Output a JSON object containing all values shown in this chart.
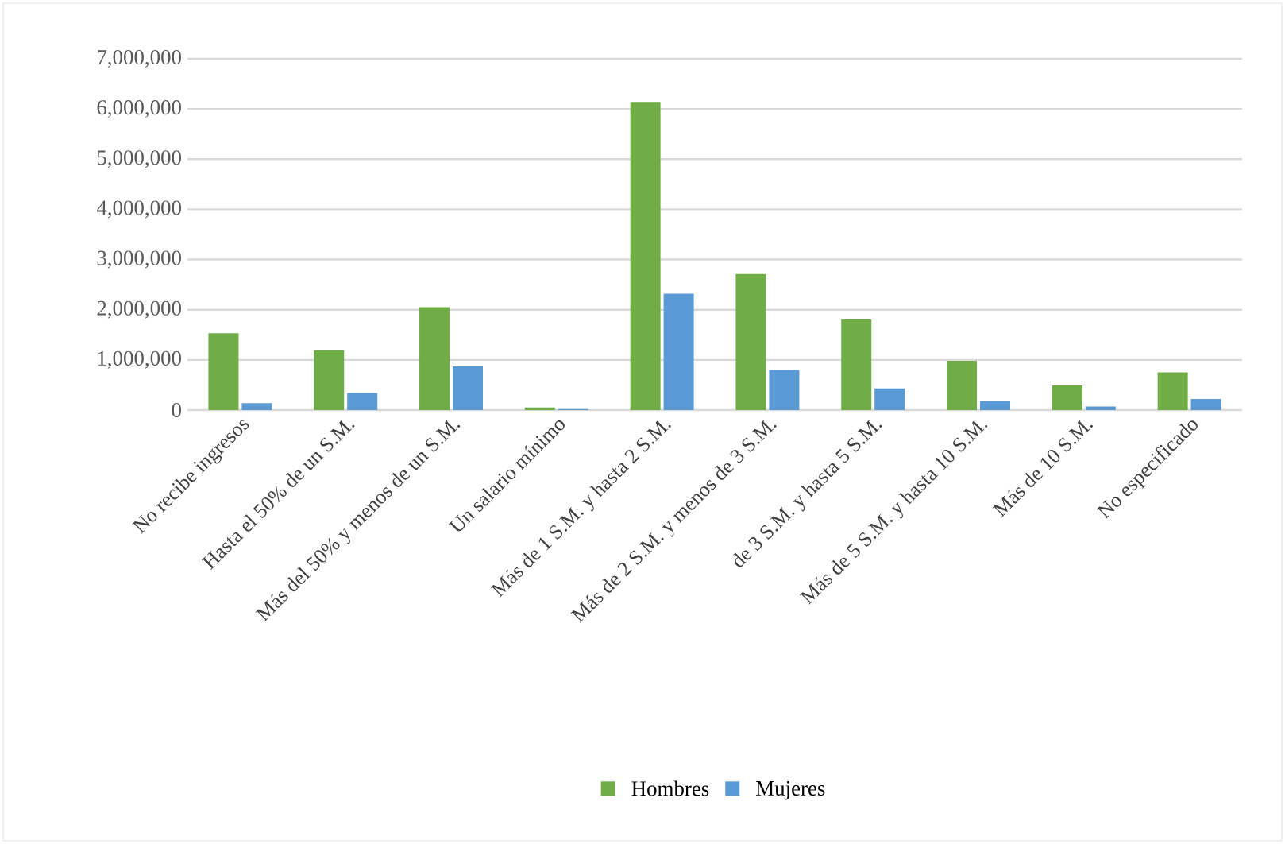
{
  "chart_data": {
    "type": "bar",
    "categories": [
      "No recibe ingresos",
      "Hasta el 50% de un S.M.",
      "Más del 50% y menos de un S.M.",
      "Un salario mínimo",
      "Más de 1 S.M. y hasta 2 S.M.",
      "Más de 2 S.M. y menos de 3 S.M.",
      "de 3 S.M. y hasta 5 S.M.",
      "Más de 5 S.M. y hasta 10 S.M.",
      "Más de 10 S.M.",
      "No especificado"
    ],
    "series": [
      {
        "name": "Hombres",
        "color": "#70ad47",
        "values": [
          1530000,
          1190000,
          2050000,
          50000,
          6140000,
          2710000,
          1810000,
          980000,
          490000,
          750000
        ]
      },
      {
        "name": "Mujeres",
        "color": "#5b9bd5",
        "values": [
          140000,
          340000,
          870000,
          20000,
          2320000,
          800000,
          430000,
          180000,
          70000,
          220000
        ]
      }
    ],
    "ylim": [
      0,
      7000000
    ],
    "yticks": [
      0,
      {
        "value": 1000000,
        "label": "1,000,000"
      },
      {
        "value": 2000000,
        "label": "2,000,000"
      },
      {
        "value": 3000000,
        "label": "3,000,000"
      },
      {
        "value": 4000000,
        "label": "4,000,000"
      },
      {
        "value": 5000000,
        "label": "5,000,000"
      },
      {
        "value": 6000000,
        "label": "6,000,000"
      },
      {
        "value": 7000000,
        "label": "7,000,000"
      }
    ],
    "grid": "y",
    "legend": "bottom"
  }
}
